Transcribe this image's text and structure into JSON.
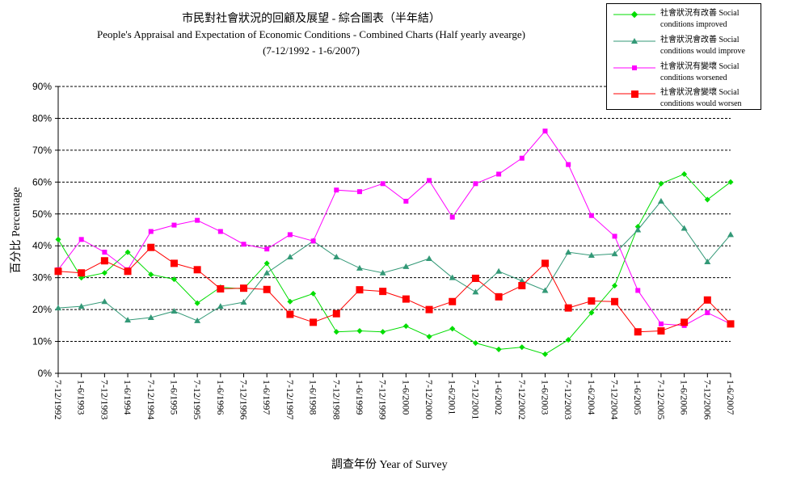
{
  "chart_data": {
    "type": "line",
    "title": "市民對社會狀況的回顧及展望 - 綜合圖表（半年結）",
    "subtitle": "People's Appraisal and Expectation of Economic Conditions - Combined Charts  (Half yearly avearge)",
    "period": "(7-12/1992 - 1-6/2007)",
    "xlabel": "調查年份 Year of Survey",
    "ylabel": "百分比 Percentage",
    "ylim": [
      0,
      90
    ],
    "yticks": [
      "0%",
      "10%",
      "20%",
      "30%",
      "40%",
      "50%",
      "60%",
      "70%",
      "80%",
      "90%"
    ],
    "grid": "horizontal dashed",
    "legend_position": "top-right",
    "categories": [
      "7-12/1992",
      "1-6/1993",
      "7-12/1993",
      "1-6/1994",
      "7-12/1994",
      "1-6/1995",
      "7-12/1995",
      "1-6/1996",
      "7-12/1996",
      "1-6/1997",
      "7-12/1997",
      "1-6/1998",
      "7-12/1998",
      "1-6/1999",
      "7-12/1999",
      "1-6/2000",
      "7-12/2000",
      "1-6/2001",
      "7-12/2001",
      "1-6/2002",
      "7-12/2002",
      "1-6/2003",
      "7-12/2003",
      "1-6/2004",
      "7-12/2004",
      "1-6/2005",
      "7-12/2005",
      "1-6/2006",
      "7-12/2006",
      "1-6/2007"
    ],
    "series": [
      {
        "name": "社會狀況有改善 Social conditions improved",
        "color": "#00dd00",
        "marker": "diamond",
        "values": [
          42,
          30,
          31.5,
          38,
          31,
          29.5,
          22,
          27,
          26.5,
          34.5,
          22.5,
          25,
          13,
          13.3,
          13,
          14.8,
          11.5,
          14,
          9.5,
          7.5,
          8.2,
          6,
          10.5,
          19,
          27.5,
          46,
          59.5,
          62.5,
          54.5,
          60
        ]
      },
      {
        "name": "社會狀況會改善 Social conditions would improve",
        "color": "#339977",
        "marker": "triangle",
        "values": [
          20.5,
          21,
          22.5,
          16.7,
          17.5,
          19.5,
          16.5,
          21,
          22.3,
          31.5,
          36.5,
          41.5,
          36.5,
          33,
          31.5,
          33.5,
          36,
          30,
          25.5,
          32,
          29,
          26,
          38,
          37,
          37.5,
          45,
          54,
          45.5,
          35,
          43.5
        ]
      },
      {
        "name": "社會狀況有變壞 Social conditions worsened",
        "color": "#ff00ff",
        "marker": "square",
        "values": [
          32.5,
          42,
          38,
          32.5,
          44.5,
          46.5,
          48,
          44.5,
          40.5,
          39,
          43.5,
          41.5,
          57.5,
          57,
          59.5,
          54,
          60.5,
          49,
          59.5,
          62.5,
          67.5,
          76,
          65.5,
          49.5,
          43,
          26,
          15.5,
          15,
          19,
          15.5
        ]
      },
      {
        "name": "社會狀況會變壞 Social conditions would worsen",
        "color": "#ff0000",
        "marker": "square-large",
        "values": [
          32,
          31.5,
          35.3,
          32,
          39.5,
          34.5,
          32.5,
          26.5,
          26.7,
          26.3,
          18.5,
          16,
          18.7,
          26.2,
          25.7,
          23.3,
          20,
          22.5,
          29.8,
          24,
          27.5,
          34.5,
          20.5,
          22.7,
          22.5,
          13,
          13.3,
          16,
          23,
          15.5
        ]
      }
    ]
  },
  "legend": [
    {
      "zh": "社會狀況有改善",
      "en1": "Social",
      "en2": "conditions improved"
    },
    {
      "zh": "社會狀況會改善",
      "en1": "Social",
      "en2": "conditions would improve"
    },
    {
      "zh": "社會狀況有變壞",
      "en1": "Social",
      "en2": "conditions worsened"
    },
    {
      "zh": "社會狀況會變壞",
      "en1": "Social",
      "en2": "conditions would worsen"
    }
  ]
}
